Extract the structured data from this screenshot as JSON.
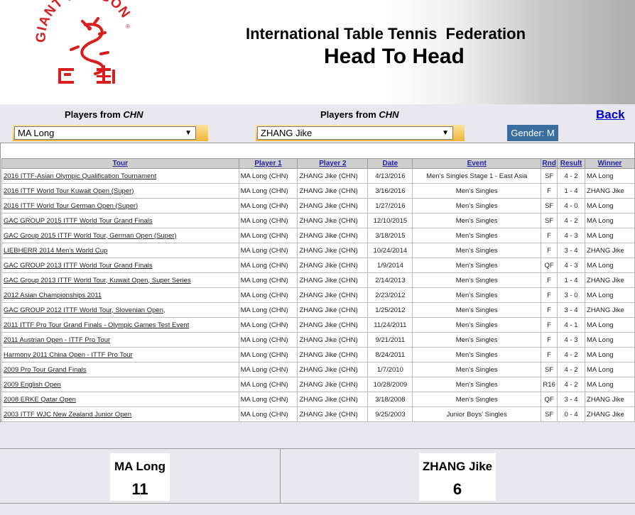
{
  "header": {
    "title_line1": "International Table Tennis  Federation",
    "title_line2": "Head To Head",
    "logo_text": "GIANT DRAGON"
  },
  "player1_select": {
    "label": "Players from ",
    "country": "CHN",
    "value": "MA Long"
  },
  "player2_select": {
    "label": "Players from ",
    "country": "CHN",
    "value": "ZHANG Jike"
  },
  "back_link": "Back",
  "gender": "Gender: M",
  "columns": [
    "Tour",
    "Player 1",
    "Player 2",
    "Date",
    "Event",
    "Rnd",
    "Result",
    "Winner"
  ],
  "rows": [
    {
      "tour": "2016 ITTF-Asian Olympic Qualification Tournament",
      "p1": "MA Long (CHN)",
      "p2": "ZHANG Jike (CHN)",
      "date": "4/13/2016",
      "event": "Men's Singles Stage 1 - East Asia",
      "rnd": "SF",
      "result": "4 - 2",
      "winner": "MA Long"
    },
    {
      "tour": "2016 ITTF World Tour Kuwait Open (Super)",
      "p1": "MA Long (CHN)",
      "p2": "ZHANG Jike (CHN)",
      "date": "3/16/2016",
      "event": "Men's Singles",
      "rnd": "F",
      "result": "1 - 4",
      "winner": "ZHANG Jike"
    },
    {
      "tour": "2016 ITTF World Tour German Open (Super)",
      "p1": "MA Long (CHN)",
      "p2": "ZHANG Jike (CHN)",
      "date": "1/27/2016",
      "event": "Men's Singles",
      "rnd": "SF",
      "result": "4 - 0",
      "winner": "MA Long"
    },
    {
      "tour": "GAC GROUP 2015 ITTF World Tour Grand Finals",
      "p1": "MA Long (CHN)",
      "p2": "ZHANG Jike (CHN)",
      "date": "12/10/2015",
      "event": "Men's Singles",
      "rnd": "SF",
      "result": "4 - 2",
      "winner": "MA Long"
    },
    {
      "tour": "GAC Group 2015 ITTF World Tour, German Open (Super)",
      "p1": "MA Long (CHN)",
      "p2": "ZHANG Jike (CHN)",
      "date": "3/18/2015",
      "event": "Men's Singles",
      "rnd": "F",
      "result": "4 - 3",
      "winner": "MA Long"
    },
    {
      "tour": "LIEBHERR 2014 Men's World Cup",
      "p1": "MA Long (CHN)",
      "p2": "ZHANG Jike (CHN)",
      "date": "10/24/2014",
      "event": "Men's Singles",
      "rnd": "F",
      "result": "3 - 4",
      "winner": "ZHANG Jike"
    },
    {
      "tour": "GAC GROUP 2013 ITTF World Tour Grand Finals",
      "p1": "MA Long (CHN)",
      "p2": "ZHANG Jike (CHN)",
      "date": "1/9/2014",
      "event": "Men's Singles",
      "rnd": "QF",
      "result": "4 - 3",
      "winner": "MA Long"
    },
    {
      "tour": "GAC Group 2013 ITTF World Tour, Kuwait Open, Super Series",
      "p1": "MA Long (CHN)",
      "p2": "ZHANG Jike (CHN)",
      "date": "2/14/2013",
      "event": "Men's Singles",
      "rnd": "F",
      "result": "1 - 4",
      "winner": "ZHANG Jike"
    },
    {
      "tour": "2012 Asian Championships 2011",
      "p1": "MA Long (CHN)",
      "p2": "ZHANG Jike (CHN)",
      "date": "2/23/2012",
      "event": "Men's Singles",
      "rnd": "F",
      "result": "3 - 0",
      "winner": "MA Long"
    },
    {
      "tour": "GAC GROUP 2012 ITTF World Tour, Slovenian Open,",
      "p1": "MA Long (CHN)",
      "p2": "ZHANG Jike (CHN)",
      "date": "1/25/2012",
      "event": "Men's Singles",
      "rnd": "F",
      "result": "3 - 4",
      "winner": "ZHANG Jike"
    },
    {
      "tour": "2011 ITTF Pro Tour Grand Finals - Olympic Games Test Event",
      "p1": "MA Long (CHN)",
      "p2": "ZHANG Jike (CHN)",
      "date": "11/24/2011",
      "event": "Men's Singles",
      "rnd": "F",
      "result": "4 - 1",
      "winner": "MA Long"
    },
    {
      "tour": "2011 Austrian Open - ITTF Pro Tour",
      "p1": "MA Long (CHN)",
      "p2": "ZHANG Jike (CHN)",
      "date": "9/21/2011",
      "event": "Men's Singles",
      "rnd": "F",
      "result": "4 - 3",
      "winner": "MA Long"
    },
    {
      "tour": "Harmony 2011 China Open - ITTF Pro Tour",
      "p1": "MA Long (CHN)",
      "p2": "ZHANG Jike (CHN)",
      "date": "8/24/2011",
      "event": "Men's Singles",
      "rnd": "F",
      "result": "4 - 2",
      "winner": "MA Long"
    },
    {
      "tour": "2009 Pro Tour Grand Finals",
      "p1": "MA Long (CHN)",
      "p2": "ZHANG Jike (CHN)",
      "date": "1/7/2010",
      "event": "Men's Singles",
      "rnd": "SF",
      "result": "4 - 2",
      "winner": "MA Long"
    },
    {
      "tour": "2009 English Open",
      "p1": "MA Long (CHN)",
      "p2": "ZHANG Jike (CHN)",
      "date": "10/28/2009",
      "event": "Men's Singles",
      "rnd": "R16",
      "result": "4 - 2",
      "winner": "MA Long"
    },
    {
      "tour": "2008 ERKE Qatar Open",
      "p1": "MA Long (CHN)",
      "p2": "ZHANG Jike (CHN)",
      "date": "3/18/2008",
      "event": "Men's Singles",
      "rnd": "QF",
      "result": "3 - 4",
      "winner": "ZHANG Jike"
    },
    {
      "tour": "2003 ITTF WJC New Zealand Junior Open",
      "p1": "MA Long (CHN)",
      "p2": "ZHANG Jike (CHN)",
      "date": "9/25/2003",
      "event": "Junior Boys' Singles",
      "rnd": "SF",
      "result": "0 - 4",
      "winner": "ZHANG Jike"
    }
  ],
  "summary": {
    "player1": {
      "name": "MA Long",
      "wins": "11"
    },
    "player2": {
      "name": "ZHANG Jike",
      "wins": "6"
    }
  },
  "colors": {
    "winner_text": "#e03c1e",
    "link_blue": "#1a1aa8",
    "gender_bg": "#3a6e9e",
    "logo_red": "#d81e1e"
  }
}
